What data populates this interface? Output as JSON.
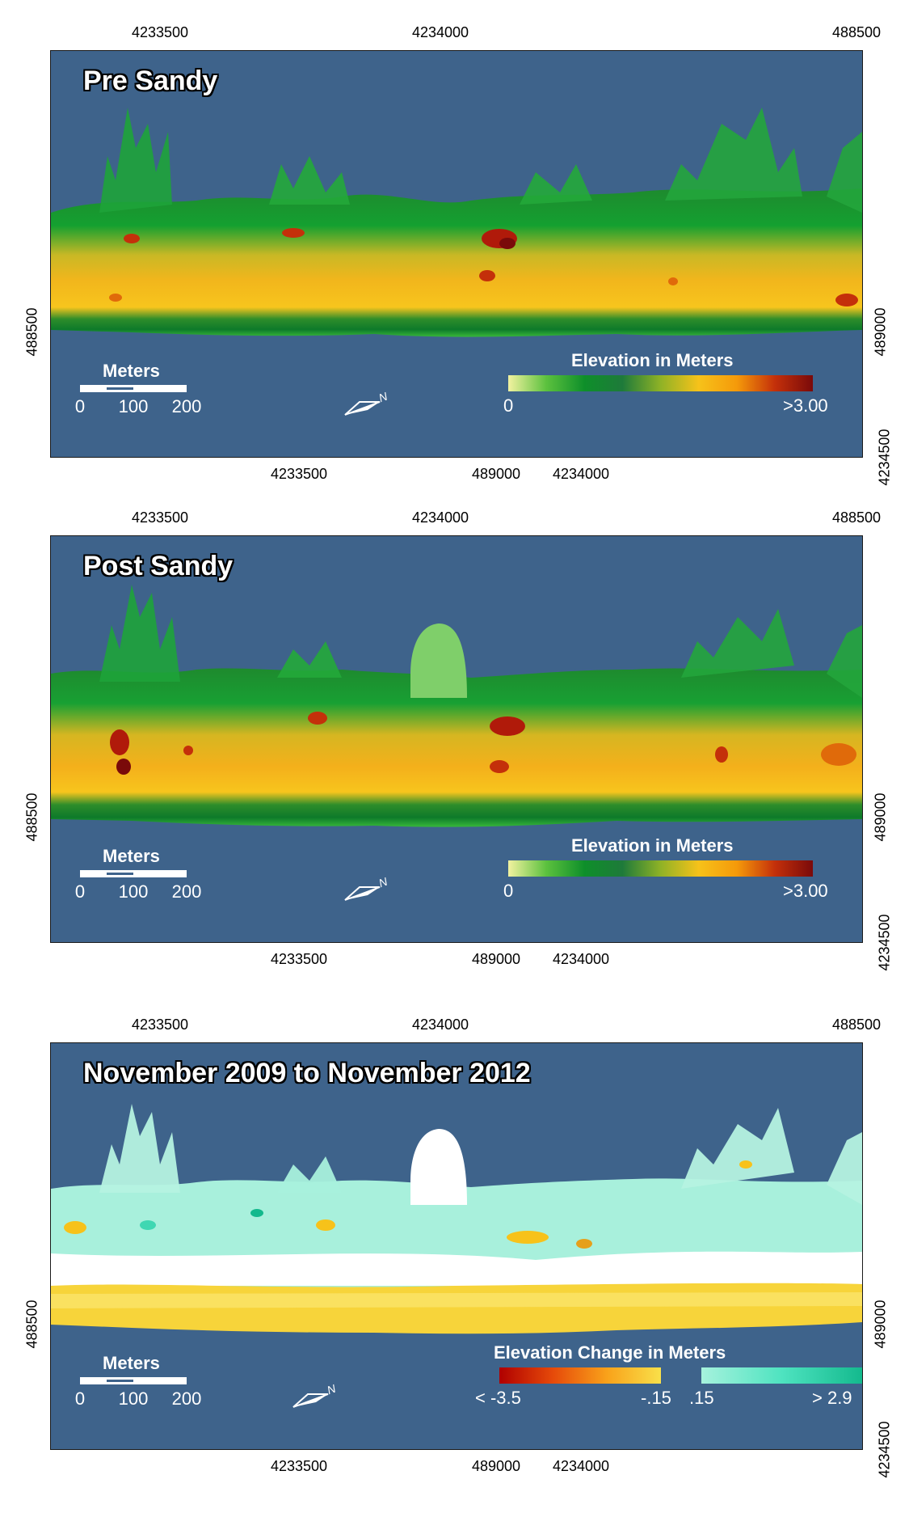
{
  "panels": [
    {
      "title": "Pre Sandy",
      "top_ticks": [
        "4233500",
        "4234000",
        "488500"
      ],
      "bottom_ticks": [
        "4233500",
        "489000",
        "4234000"
      ],
      "left_tick": "488500",
      "right_ticks": [
        "489000",
        "4234500"
      ],
      "scale": {
        "unit": "Meters",
        "labels": [
          "0",
          "100",
          "200"
        ]
      },
      "legend": {
        "title": "Elevation in Meters",
        "min": "0",
        "max": ">3.00"
      }
    },
    {
      "title": "Post Sandy",
      "top_ticks": [
        "4233500",
        "4234000",
        "488500"
      ],
      "bottom_ticks": [
        "4233500",
        "489000",
        "4234000"
      ],
      "left_tick": "488500",
      "right_ticks": [
        "489000",
        "4234500"
      ],
      "scale": {
        "unit": "Meters",
        "labels": [
          "0",
          "100",
          "200"
        ]
      },
      "legend": {
        "title": "Elevation in Meters",
        "min": "0",
        "max": ">3.00"
      }
    },
    {
      "title": "November 2009 to November 2012",
      "top_ticks": [
        "4233500",
        "4234000",
        "488500"
      ],
      "bottom_ticks": [
        "4233500",
        "489000",
        "4234000"
      ],
      "left_tick": "488500",
      "right_ticks": [
        "489000",
        "4234500"
      ],
      "scale": {
        "unit": "Meters",
        "labels": [
          "0",
          "100",
          "200"
        ]
      },
      "legend": {
        "title": "Elevation Change in Meters",
        "neg_min": "< -3.5",
        "neg_max": "-.15",
        "pos_min": ".15",
        "pos_max": "> 2.9"
      }
    }
  ],
  "north_label": "N",
  "colors": {
    "water": "#3e638b",
    "elevation_ramp": [
      "#f2f2a0",
      "#5cc13e",
      "#0e8f2a",
      "#1e7a3a",
      "#8fb226",
      "#f6c21a",
      "#f59a0a",
      "#c4300a",
      "#7a0a0a"
    ],
    "loss_ramp": [
      "#b00000",
      "#e64a0a",
      "#f9a21a",
      "#f9e04a"
    ],
    "gain_ramp": [
      "#a6f2dd",
      "#4ee3c0",
      "#13b98d"
    ]
  }
}
